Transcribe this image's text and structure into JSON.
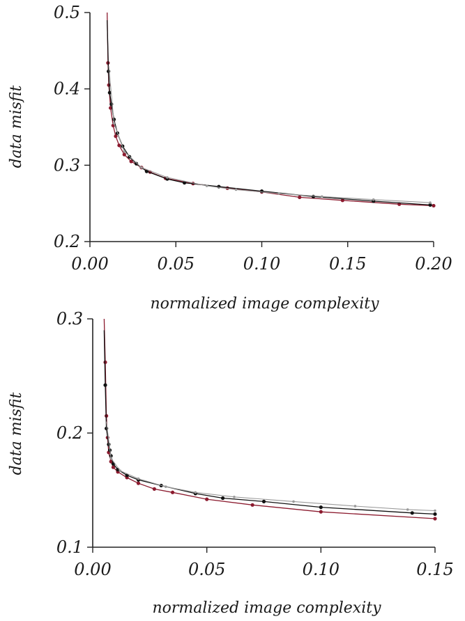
{
  "chart_data": [
    {
      "type": "line",
      "xlabel": "normalized image complexity",
      "ylabel": "data misfit",
      "xlim": [
        0.0,
        0.2
      ],
      "ylim": [
        0.2,
        0.5
      ],
      "xticks": [
        "0.00",
        "0.05",
        "0.10",
        "0.15",
        "0.20"
      ],
      "yticks": [
        "0.2",
        "0.3",
        "0.4",
        "0.5"
      ],
      "series": [
        {
          "color": "#8b1a2e",
          "x": [
            0.01,
            0.0105,
            0.011,
            0.012,
            0.0135,
            0.015,
            0.017,
            0.02,
            0.024,
            0.03,
            0.035,
            0.044,
            0.06,
            0.08,
            0.1,
            0.122,
            0.147,
            0.18,
            0.2
          ],
          "values": [
            0.5,
            0.434,
            0.405,
            0.375,
            0.352,
            0.338,
            0.326,
            0.314,
            0.305,
            0.297,
            0.291,
            0.283,
            0.276,
            0.27,
            0.265,
            0.258,
            0.254,
            0.249,
            0.247
          ]
        },
        {
          "color": "#111111",
          "x": [
            0.01,
            0.0108,
            0.0115,
            0.0125,
            0.014,
            0.016,
            0.019,
            0.023,
            0.027,
            0.033,
            0.045,
            0.055,
            0.075,
            0.1,
            0.13,
            0.165,
            0.198
          ],
          "values": [
            0.49,
            0.423,
            0.395,
            0.38,
            0.36,
            0.342,
            0.325,
            0.311,
            0.302,
            0.292,
            0.282,
            0.277,
            0.272,
            0.266,
            0.259,
            0.253,
            0.248
          ]
        },
        {
          "color": "#9a9a9a",
          "x": [
            0.011,
            0.014,
            0.02,
            0.03,
            0.045,
            0.068,
            0.085,
            0.11,
            0.135,
            0.165,
            0.198
          ],
          "values": [
            0.43,
            0.355,
            0.318,
            0.297,
            0.284,
            0.273,
            0.268,
            0.263,
            0.259,
            0.255,
            0.251
          ]
        }
      ]
    },
    {
      "type": "line",
      "xlabel": "normalized image complexity",
      "ylabel": "data misfit",
      "xlim": [
        0.0,
        0.15
      ],
      "ylim": [
        0.1,
        0.3
      ],
      "xticks": [
        "0.00",
        "0.05",
        "0.10",
        "0.15"
      ],
      "yticks": [
        "0.1",
        "0.2",
        "0.3"
      ],
      "series": [
        {
          "color": "#8b1a2e",
          "x": [
            0.005,
            0.0055,
            0.006,
            0.0065,
            0.007,
            0.008,
            0.009,
            0.011,
            0.015,
            0.02,
            0.027,
            0.035,
            0.05,
            0.07,
            0.1,
            0.15
          ],
          "values": [
            0.3,
            0.262,
            0.215,
            0.196,
            0.183,
            0.175,
            0.17,
            0.166,
            0.161,
            0.156,
            0.151,
            0.148,
            0.142,
            0.137,
            0.131,
            0.125
          ]
        },
        {
          "color": "#111111",
          "x": [
            0.005,
            0.0055,
            0.006,
            0.007,
            0.0075,
            0.008,
            0.009,
            0.011,
            0.015,
            0.02,
            0.03,
            0.045,
            0.057,
            0.075,
            0.1,
            0.14,
            0.15
          ],
          "values": [
            0.29,
            0.242,
            0.204,
            0.19,
            0.185,
            0.18,
            0.173,
            0.168,
            0.163,
            0.159,
            0.154,
            0.147,
            0.143,
            0.14,
            0.135,
            0.13,
            0.129
          ]
        },
        {
          "color": "#9a9a9a",
          "x": [
            0.006,
            0.008,
            0.012,
            0.02,
            0.032,
            0.045,
            0.062,
            0.088,
            0.115,
            0.138,
            0.15
          ],
          "values": [
            0.21,
            0.178,
            0.167,
            0.16,
            0.153,
            0.148,
            0.144,
            0.14,
            0.136,
            0.133,
            0.132
          ]
        }
      ]
    }
  ]
}
